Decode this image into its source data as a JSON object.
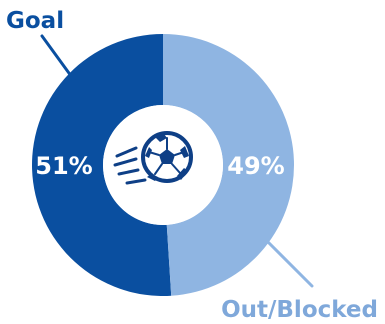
{
  "chart_data": {
    "type": "pie",
    "categories": [
      "Goal",
      "Out/Blocked"
    ],
    "values": [
      51,
      49
    ],
    "value_labels": [
      "51%",
      "49%"
    ],
    "colors": [
      "#0a4fa0",
      "#8fb5e2"
    ],
    "label_colors": [
      "#0a4fa0",
      "#7fa8da"
    ],
    "value_label_color": "#ffffff",
    "center_icon": "soccer-ball-icon",
    "icon_color": "#0e3f86"
  }
}
